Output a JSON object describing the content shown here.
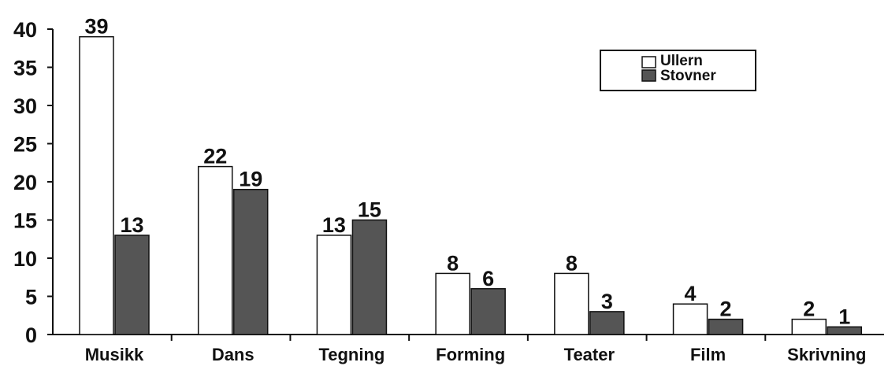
{
  "chart_data": {
    "type": "bar",
    "categories": [
      "Musikk",
      "Dans",
      "Tegning",
      "Forming",
      "Teater",
      "Film",
      "Skrivning"
    ],
    "series": [
      {
        "name": "Ullern",
        "values": [
          39,
          22,
          13,
          8,
          8,
          4,
          2
        ],
        "color": "#ffffff"
      },
      {
        "name": "Stovner",
        "values": [
          13,
          19,
          15,
          6,
          3,
          2,
          1
        ],
        "color": "#555555"
      }
    ],
    "ylim": [
      0,
      40
    ],
    "yticks": [
      0,
      5,
      10,
      15,
      20,
      25,
      30,
      35,
      40
    ],
    "grid": false,
    "legend": "top-right"
  }
}
